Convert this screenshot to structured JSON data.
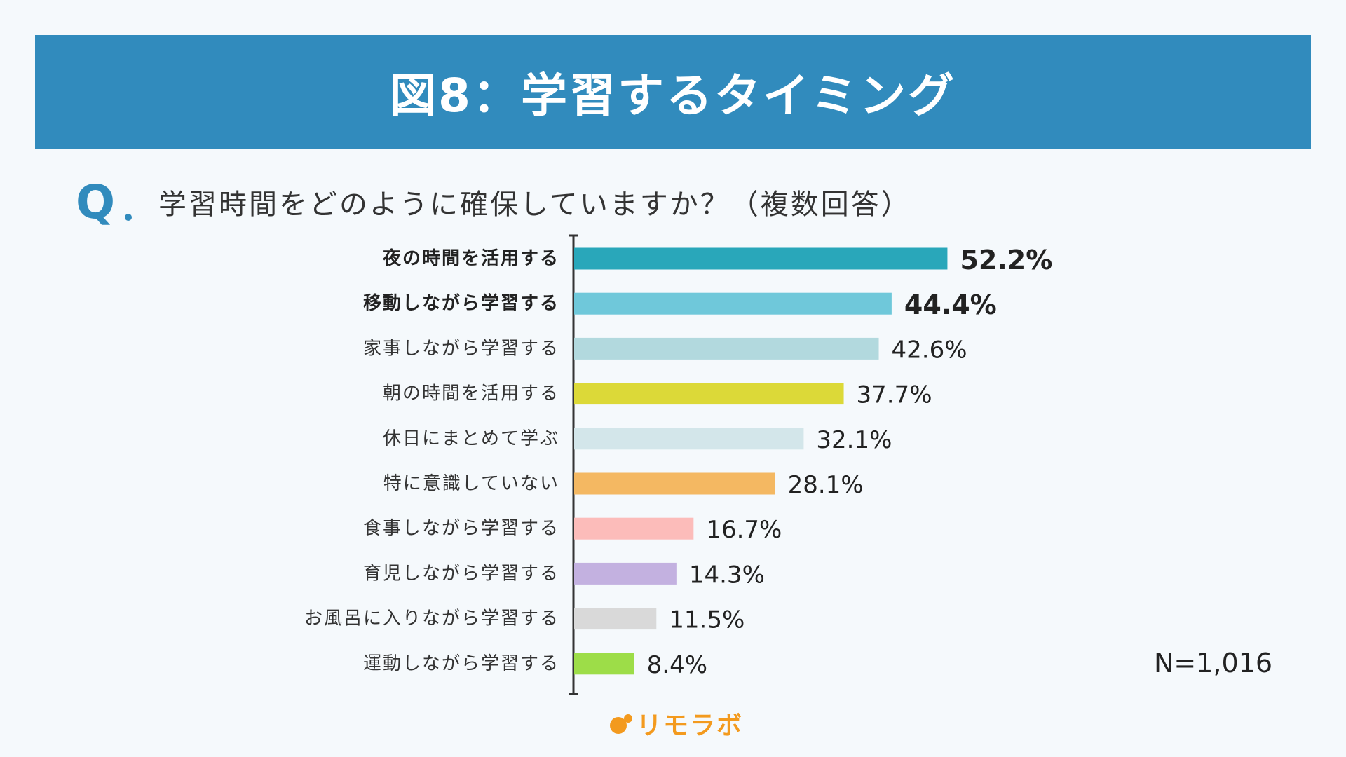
{
  "header": {
    "title": "図8：学習するタイミング"
  },
  "question": {
    "mark": "Q",
    "text": "学習時間をどのように確保していますか？（複数回答）"
  },
  "sample": {
    "label": "N=1,016"
  },
  "logo": {
    "text": "リモラボ"
  },
  "colors": {
    "banner": "#318bbd",
    "accent": "#f39a1e"
  },
  "chart_data": {
    "type": "bar",
    "orientation": "horizontal",
    "title": "学習時間をどのように確保していますか？（複数回答）",
    "xlabel": "",
    "ylabel": "",
    "xlim": [
      0,
      100
    ],
    "grid": false,
    "categories": [
      "夜の時間を活用する",
      "移動しながら学習する",
      "家事しながら学習する",
      "朝の時間を活用する",
      "休日にまとめて学ぶ",
      "特に意識していない",
      "食事しながら学習する",
      "育児しながら学習する",
      "お風呂に入りながら学習する",
      "運動しながら学習する"
    ],
    "values": [
      52.2,
      44.4,
      42.6,
      37.7,
      32.1,
      28.1,
      16.7,
      14.3,
      11.5,
      8.4
    ],
    "value_labels": [
      "52.2%",
      "44.4%",
      "42.6%",
      "37.7%",
      "32.1%",
      "28.1%",
      "16.7%",
      "14.3%",
      "11.5%",
      "8.4%"
    ],
    "highlighted": [
      true,
      true,
      false,
      false,
      false,
      false,
      false,
      false,
      false,
      false
    ],
    "colors": [
      "#29a7ba",
      "#6fc8da",
      "#b2d9de",
      "#dcd938",
      "#d3e6ea",
      "#f4b862",
      "#fcbcba",
      "#c3b1e0",
      "#d9d9d9",
      "#9ddd48"
    ],
    "unit": "%"
  }
}
